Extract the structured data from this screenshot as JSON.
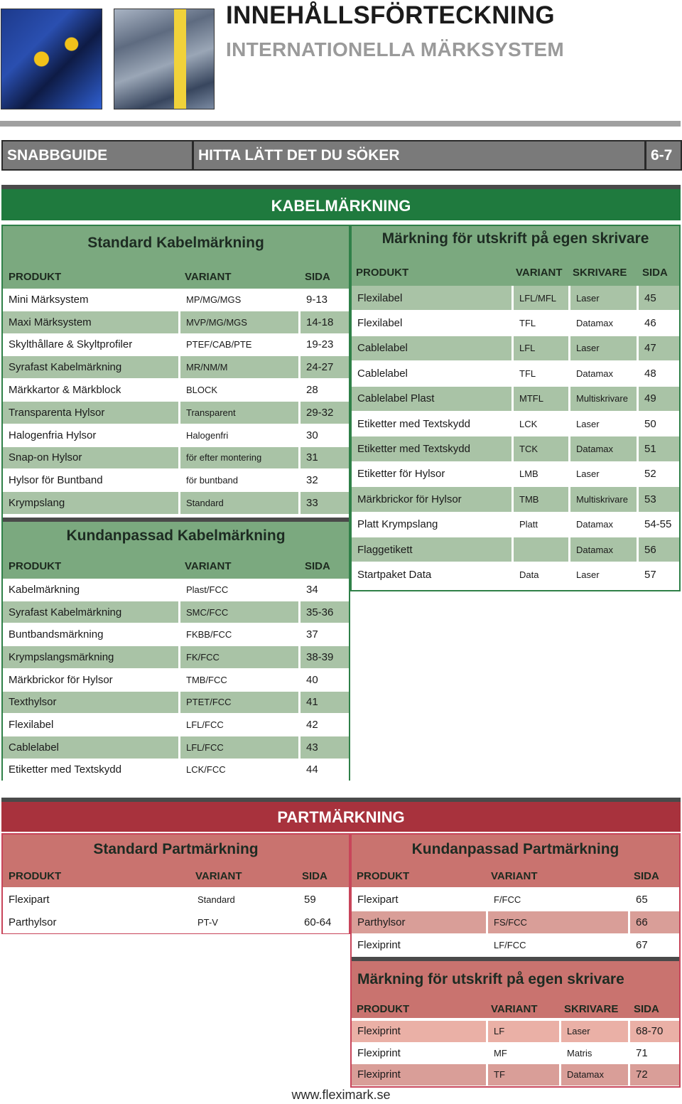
{
  "header": {
    "title": "INNEHÅLLSFÖRTECKNING",
    "subtitle": "INTERNATIONELLA MÄRKSYSTEM"
  },
  "guide": {
    "label": "SNABBGUIDE",
    "text": "HITTA LÄTT DET DU SÖKER",
    "pages": "6-7"
  },
  "kabel": {
    "heading": "KABELMÄRKNING",
    "standard": {
      "title": "Standard Kabelmärkning",
      "headers": [
        "PRODUKT",
        "VARIANT",
        "SIDA"
      ],
      "rows": [
        [
          "Mini Märksystem",
          "MP/MG/MGS",
          "9-13"
        ],
        [
          "Maxi Märksystem",
          "MVP/MG/MGS",
          "14-18"
        ],
        [
          "Skylthållare & Skyltprofiler",
          "PTEF/CAB/PTE",
          "19-23"
        ],
        [
          "Syrafast Kabelmärkning",
          "MR/NM/M",
          "24-27"
        ],
        [
          "Märkkartor & Märkblock",
          "BLOCK",
          "28"
        ],
        [
          "Transparenta Hylsor",
          "Transparent",
          "29-32"
        ],
        [
          "Halogenfria Hylsor",
          "Halogenfri",
          "30"
        ],
        [
          "Snap-on Hylsor",
          "för efter montering",
          "31"
        ],
        [
          "Hylsor för Buntband",
          "för buntband",
          "32"
        ],
        [
          "Krympslang",
          "Standard",
          "33"
        ]
      ]
    },
    "kundanpassad": {
      "title": "Kundanpassad Kabelmärkning",
      "headers": [
        "PRODUKT",
        "VARIANT",
        "SIDA"
      ],
      "rows": [
        [
          "Kabelmärkning",
          "Plast/FCC",
          "34"
        ],
        [
          "Syrafast Kabelmärkning",
          "SMC/FCC",
          "35-36"
        ],
        [
          "Buntbandsmärkning",
          "FKBB/FCC",
          "37"
        ],
        [
          "Krympslangsmärkning",
          "FK/FCC",
          "38-39"
        ],
        [
          "Märkbrickor för Hylsor",
          "TMB/FCC",
          "40"
        ],
        [
          "Texthylsor",
          "PTET/FCC",
          "41"
        ],
        [
          "Flexilabel",
          "LFL/FCC",
          "42"
        ],
        [
          "Cablelabel",
          "LFL/FCC",
          "43"
        ],
        [
          "Etiketter med Textskydd",
          "LCK/FCC",
          "44"
        ]
      ]
    },
    "skrivare": {
      "title": "Märkning för utskrift på egen skrivare",
      "headers": [
        "PRODUKT",
        "VARIANT",
        "SKRIVARE",
        "SIDA"
      ],
      "rows": [
        [
          "Flexilabel",
          "LFL/MFL",
          "Laser",
          "45"
        ],
        [
          "Flexilabel",
          "TFL",
          "Datamax",
          "46"
        ],
        [
          "Cablelabel",
          "LFL",
          "Laser",
          "47"
        ],
        [
          "Cablelabel",
          "TFL",
          "Datamax",
          "48"
        ],
        [
          "Cablelabel Plast",
          "MTFL",
          "Multiskrivare",
          "49"
        ],
        [
          "Etiketter med Textskydd",
          "LCK",
          "Laser",
          "50"
        ],
        [
          "Etiketter med Textskydd",
          "TCK",
          "Datamax",
          "51"
        ],
        [
          "Etiketter för Hylsor",
          "LMB",
          "Laser",
          "52"
        ],
        [
          "Märkbrickor för Hylsor",
          "TMB",
          "Multiskrivare",
          "53"
        ],
        [
          "Platt Krympslang",
          "Platt",
          "Datamax",
          "54-55"
        ],
        [
          "Flaggetikett",
          "",
          "Datamax",
          "56"
        ],
        [
          "Startpaket Data",
          "Data",
          "Laser",
          "57"
        ]
      ]
    }
  },
  "part": {
    "heading": "PARTMÄRKNING",
    "standard": {
      "title": "Standard Partmärkning",
      "headers": [
        "PRODUKT",
        "VARIANT",
        "SIDA"
      ],
      "rows": [
        [
          "Flexipart",
          "Standard",
          "59"
        ],
        [
          "Parthylsor",
          "PT-V",
          "60-64"
        ]
      ]
    },
    "kundanpassad": {
      "title": "Kundanpassad Partmärkning",
      "headers": [
        "PRODUKT",
        "VARIANT",
        "SIDA"
      ],
      "rows": [
        [
          "Flexipart",
          "F/FCC",
          "65"
        ],
        [
          "Parthylsor",
          "FS/FCC",
          "66"
        ],
        [
          "Flexiprint",
          "LF/FCC",
          "67"
        ]
      ]
    },
    "skrivare": {
      "title": "Märkning för utskrift på egen skrivare",
      "headers": [
        "PRODUKT",
        "VARIANT",
        "SKRIVARE",
        "SIDA"
      ],
      "rows": [
        [
          "Flexiprint",
          "LF",
          "Laser",
          "68-70"
        ],
        [
          "Flexiprint",
          "MF",
          "Matris",
          "71"
        ],
        [
          "Flexiprint",
          "TF",
          "Datamax",
          "72"
        ]
      ]
    }
  },
  "footer": {
    "url": "www.fleximark.se"
  },
  "colors": {
    "green_band": "#1f7a3e",
    "green_panel": "#7ba97f",
    "green_row": "#a9c3a6",
    "red_band": "#a8323d",
    "red_panel": "#c9736f",
    "red_row_a": "#d99e98",
    "red_row_b": "#eab0a6"
  }
}
